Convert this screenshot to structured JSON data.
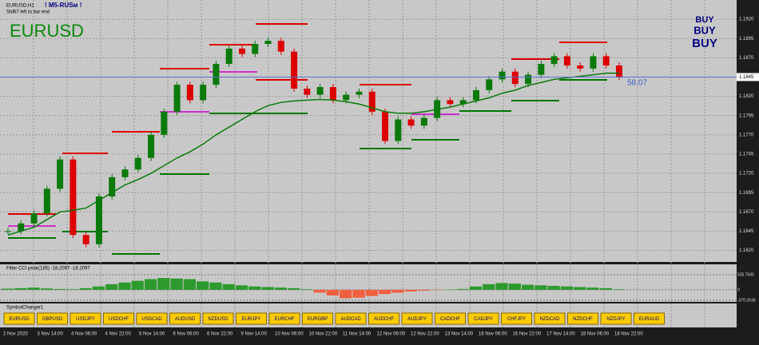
{
  "header": {
    "symbol_period": "EURUSD,H1",
    "indicator": "! M5-RUSм !",
    "timer": "Std67 left to bar end",
    "big_symbol": "EURUSD"
  },
  "signal": {
    "buy": [
      "BUY",
      "BUY",
      "BUY"
    ]
  },
  "price": {
    "ylim": [
      1.1605,
      1.1945
    ],
    "yticks": [
      {
        "value": 1.192,
        "label": "1.1920"
      },
      1.1895,
      {
        "value": 1.187,
        "label": "1.1870"
      },
      1.1845,
      {
        "value": 1.182,
        "label": "1.1820"
      },
      1.1795,
      {
        "value": 1.177,
        "label": "1.1770"
      },
      1.1745,
      {
        "value": 1.172,
        "label": "1.1720"
      },
      1.1695,
      {
        "value": 1.167,
        "label": "1.1670"
      },
      1.1645,
      {
        "value": 1.162,
        "label": "1.1620"
      }
    ],
    "current": 1.1845,
    "value_note": "58.07",
    "closes": [
      1.1645,
      1.1655,
      1.1668,
      1.17,
      1.1738,
      1.164,
      1.1628,
      1.169,
      1.1715,
      1.1725,
      1.174,
      1.177,
      1.18,
      1.1835,
      1.1815,
      1.1835,
      1.1862,
      1.1882,
      1.1875,
      1.1888,
      1.1892,
      1.1878,
      1.183,
      1.1822,
      1.1832,
      1.1815,
      1.1822,
      1.1826,
      1.18,
      1.1762,
      1.179,
      1.1782,
      1.1792,
      1.1815,
      1.181,
      1.1815,
      1.1828,
      1.1842,
      1.1852,
      1.1836,
      1.1848,
      1.1862,
      1.1872,
      1.186,
      1.1856,
      1.1872,
      1.186,
      1.1845
    ],
    "ma": [
      1.164,
      1.1645,
      1.165,
      1.166,
      1.167,
      1.1672,
      1.1675,
      1.1685,
      1.1695,
      1.1705,
      1.1712,
      1.172,
      1.173,
      1.174,
      1.1748,
      1.1758,
      1.177,
      1.178,
      1.179,
      1.18,
      1.1808,
      1.1812,
      1.1814,
      1.1815,
      1.1816,
      1.1815,
      1.1813,
      1.181,
      1.1805,
      1.18,
      1.1798,
      1.1798,
      1.18,
      1.1803,
      1.1806,
      1.181,
      1.1814,
      1.1818,
      1.1824,
      1.1828,
      1.1834,
      1.1838,
      1.1842,
      1.1844,
      1.1846,
      1.1848,
      1.185,
      1.185
    ]
  },
  "oscillator": {
    "label": "Filter CCI peak(185) -18.2097 -18.2097",
    "ylim": [
      -370.2636,
      535.7636
    ],
    "yticks": [
      535.7636,
      0,
      -370.2636
    ],
    "values": [
      40,
      60,
      80,
      50,
      30,
      20,
      60,
      120,
      200,
      260,
      320,
      380,
      420,
      400,
      380,
      300,
      260,
      200,
      160,
      120,
      100,
      80,
      60,
      20,
      -100,
      -200,
      -300,
      -280,
      -220,
      -150,
      -100,
      -60,
      -30,
      -10,
      10,
      30,
      120,
      200,
      240,
      220,
      180,
      160,
      140,
      120,
      100,
      80,
      60,
      20
    ]
  },
  "symbol_panel": {
    "title": "SymbolChanger1",
    "buttons": [
      "EURUSD",
      "GBPUSD",
      "USDJPY",
      "USDCHF",
      "USDCAD",
      "AUDUSD",
      "NZDUSD",
      "EURJPY",
      "EURCHF",
      "EURGBP",
      "AUDCAD",
      "AUDCHF",
      "AUDJPY",
      "CADCHF",
      "CADJPY",
      "CHFJPY",
      "NZDCAD",
      "NZDCHF",
      "NZDJPY",
      "EURAUD"
    ]
  },
  "time_axis": {
    "labels": [
      "2 Nov 2020",
      "3 Nov 14:00",
      "4 Nov 06:00",
      "4 Nov 22:00",
      "5 Nov 14:00",
      "6 Nov 06:00",
      "6 Nov 22:00",
      "9 Nov 14:00",
      "10 Nov 06:00",
      "10 Nov 22:00",
      "11 Nov 14:00",
      "12 Nov 06:00",
      "12 Nov 22:00",
      "13 Nov 14:00",
      "16 Nov 06:00",
      "16 Nov 22:00",
      "17 Nov 14:00",
      "18 Nov 06:00",
      "18 Nov 22:00"
    ]
  }
}
